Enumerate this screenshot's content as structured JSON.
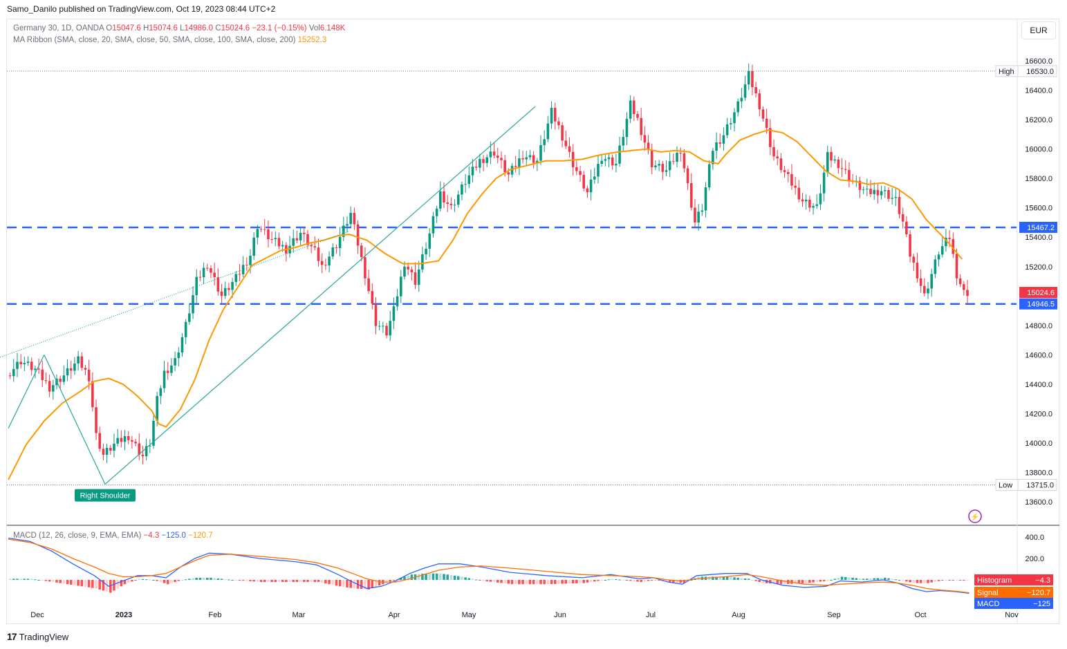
{
  "header": {
    "publisher": "Samo_Danilo published on TradingView.com, Oct 19, 2023 08:44 UTC+2",
    "currency_button": "EUR",
    "brand": "TradingView"
  },
  "legend": {
    "symbol": "Germany 30, 1D, OANDA",
    "o_label": "O",
    "o": "15047.6",
    "h_label": "H",
    "h": "15074.6",
    "l_label": "L",
    "l": "14986.0",
    "c_label": "C",
    "c": "15024.6",
    "chg": "−23.1 (−0.15%)",
    "vol_label": "Vol",
    "vol": "6.148K",
    "ma_label": "MA Ribbon (SMA, close, 20, SMA, close, 50, SMA, close, 100, SMA, close, 200)",
    "ma_value": "15252.3",
    "macd_label": "MACD (12, 26, close, 9, EMA, EMA)",
    "macd_hist": "−4.3",
    "macd_macd": "−125.0",
    "macd_signal": "−120.7"
  },
  "colors": {
    "up": "#089981",
    "down": "#f23645",
    "ma": "#ff9800",
    "level": "#2962ff",
    "trend": "#26a69a",
    "macd": "#2962ff",
    "signal": "#ff6d00"
  },
  "chart_data": [
    {
      "type": "candlestick",
      "title": "Germany 30, 1D, OANDA",
      "x_tick_labels": [
        "Dec",
        "2023",
        "Feb",
        "Mar",
        "Apr",
        "May",
        "Jun",
        "Jul",
        "Aug",
        "Sep",
        "Oct",
        "Nov"
      ],
      "y_tick_labels": [
        "16600.0",
        "16400.0",
        "16200.0",
        "16000.0",
        "15800.0",
        "15600.0",
        "15400.0",
        "15200.0",
        "14800.0",
        "14600.0",
        "14400.0",
        "14200.0",
        "14000.0",
        "13800.0",
        "13600.0"
      ],
      "ylim": [
        13550,
        16700
      ],
      "high_label": "High",
      "high": 16530.0,
      "low_label": "Low",
      "low": 13715.0,
      "levels": [
        15467.2,
        14946.5
      ],
      "last_price": 15024.6,
      "annotation": "Right Shoulder",
      "ma_series": [
        [
          0,
          13750
        ],
        [
          5,
          13990
        ],
        [
          10,
          14150
        ],
        [
          15,
          14270
        ],
        [
          20,
          14350
        ],
        [
          24,
          14420
        ],
        [
          28,
          14440
        ],
        [
          32,
          14400
        ],
        [
          36,
          14320
        ],
        [
          40,
          14220
        ],
        [
          42,
          14130
        ],
        [
          44,
          14110
        ],
        [
          48,
          14230
        ],
        [
          52,
          14430
        ],
        [
          56,
          14700
        ],
        [
          60,
          14910
        ],
        [
          64,
          15060
        ],
        [
          68,
          15210
        ],
        [
          72,
          15260
        ],
        [
          76,
          15310
        ],
        [
          80,
          15330
        ],
        [
          84,
          15360
        ],
        [
          88,
          15380
        ],
        [
          92,
          15410
        ],
        [
          95,
          15420
        ],
        [
          100,
          15380
        ],
        [
          105,
          15290
        ],
        [
          110,
          15220
        ],
        [
          115,
          15220
        ],
        [
          120,
          15240
        ],
        [
          124,
          15380
        ],
        [
          128,
          15560
        ],
        [
          132,
          15690
        ],
        [
          136,
          15800
        ],
        [
          140,
          15860
        ],
        [
          145,
          15890
        ],
        [
          150,
          15920
        ],
        [
          155,
          15920
        ],
        [
          160,
          15930
        ],
        [
          165,
          15960
        ],
        [
          170,
          15980
        ],
        [
          174,
          15990
        ],
        [
          178,
          16000
        ],
        [
          182,
          15980
        ],
        [
          186,
          15990
        ],
        [
          190,
          15980
        ],
        [
          194,
          15920
        ],
        [
          198,
          15900
        ],
        [
          200,
          15960
        ],
        [
          204,
          16060
        ],
        [
          208,
          16100
        ],
        [
          212,
          16130
        ],
        [
          216,
          16110
        ],
        [
          220,
          16050
        ],
        [
          224,
          15950
        ],
        [
          228,
          15850
        ],
        [
          232,
          15790
        ],
        [
          236,
          15780
        ],
        [
          240,
          15760
        ],
        [
          244,
          15770
        ],
        [
          248,
          15730
        ],
        [
          252,
          15660
        ],
        [
          256,
          15520
        ],
        [
          260,
          15420
        ],
        [
          263,
          15340
        ],
        [
          266,
          15250
        ]
      ],
      "trendlines": [
        {
          "from": [
            0,
            14100
          ],
          "to": [
            10,
            14600
          ],
          "style": "solid"
        },
        {
          "from": [
            10,
            14600
          ],
          "to": [
            27,
            13720
          ],
          "style": "solid"
        },
        {
          "from": [
            27,
            13720
          ],
          "to": [
            147,
            16290
          ],
          "style": "solid"
        },
        {
          "from": [
            -5,
            14560
          ],
          "to": [
            95,
            15440
          ],
          "style": "dotted"
        }
      ]
    },
    {
      "type": "macd",
      "title": "MACD (12, 26, close, 9, EMA, EMA)",
      "y_tick_labels": [
        "400.0",
        "200.0"
      ],
      "ylim": [
        -230,
        470
      ],
      "labels": [
        "Histogram",
        "Signal",
        "MACD"
      ],
      "values": [
        -4.3,
        -120.7,
        -125.0
      ],
      "macd_series": [
        [
          0,
          390
        ],
        [
          6,
          360
        ],
        [
          12,
          270
        ],
        [
          18,
          150
        ],
        [
          24,
          40
        ],
        [
          28,
          -60
        ],
        [
          32,
          -10
        ],
        [
          36,
          40
        ],
        [
          40,
          40
        ],
        [
          44,
          20
        ],
        [
          48,
          120
        ],
        [
          52,
          200
        ],
        [
          56,
          250
        ],
        [
          62,
          240
        ],
        [
          70,
          200
        ],
        [
          80,
          170
        ],
        [
          86,
          140
        ],
        [
          92,
          50
        ],
        [
          96,
          -20
        ],
        [
          100,
          -80
        ],
        [
          104,
          -60
        ],
        [
          108,
          -10
        ],
        [
          112,
          60
        ],
        [
          116,
          110
        ],
        [
          120,
          150
        ],
        [
          126,
          150
        ],
        [
          132,
          120
        ],
        [
          140,
          70
        ],
        [
          150,
          40
        ],
        [
          160,
          20
        ],
        [
          168,
          50
        ],
        [
          172,
          30
        ],
        [
          176,
          10
        ],
        [
          180,
          20
        ],
        [
          184,
          -20
        ],
        [
          188,
          -40
        ],
        [
          192,
          40
        ],
        [
          200,
          60
        ],
        [
          206,
          60
        ],
        [
          210,
          0
        ],
        [
          216,
          -50
        ],
        [
          222,
          -70
        ],
        [
          228,
          -60
        ],
        [
          232,
          -10
        ],
        [
          238,
          -20
        ],
        [
          244,
          0
        ],
        [
          248,
          -30
        ],
        [
          252,
          -80
        ],
        [
          256,
          -110
        ],
        [
          260,
          -100
        ],
        [
          264,
          -110
        ],
        [
          268,
          -125
        ]
      ],
      "signal_series": [
        [
          0,
          380
        ],
        [
          6,
          350
        ],
        [
          12,
          290
        ],
        [
          18,
          200
        ],
        [
          24,
          120
        ],
        [
          28,
          60
        ],
        [
          32,
          30
        ],
        [
          36,
          30
        ],
        [
          40,
          40
        ],
        [
          44,
          60
        ],
        [
          48,
          120
        ],
        [
          52,
          180
        ],
        [
          56,
          230
        ],
        [
          62,
          240
        ],
        [
          70,
          220
        ],
        [
          80,
          190
        ],
        [
          86,
          160
        ],
        [
          92,
          110
        ],
        [
          96,
          60
        ],
        [
          100,
          10
        ],
        [
          104,
          -20
        ],
        [
          108,
          -20
        ],
        [
          112,
          10
        ],
        [
          116,
          50
        ],
        [
          120,
          90
        ],
        [
          126,
          120
        ],
        [
          132,
          130
        ],
        [
          140,
          110
        ],
        [
          150,
          80
        ],
        [
          160,
          50
        ],
        [
          168,
          40
        ],
        [
          172,
          35
        ],
        [
          176,
          30
        ],
        [
          180,
          20
        ],
        [
          184,
          0
        ],
        [
          188,
          -10
        ],
        [
          192,
          10
        ],
        [
          200,
          30
        ],
        [
          206,
          50
        ],
        [
          210,
          30
        ],
        [
          216,
          -10
        ],
        [
          222,
          -40
        ],
        [
          228,
          -50
        ],
        [
          232,
          -40
        ],
        [
          238,
          -30
        ],
        [
          244,
          -20
        ],
        [
          248,
          -30
        ],
        [
          252,
          -50
        ],
        [
          256,
          -80
        ],
        [
          260,
          -95
        ],
        [
          264,
          -105
        ],
        [
          268,
          -120
        ]
      ]
    }
  ]
}
